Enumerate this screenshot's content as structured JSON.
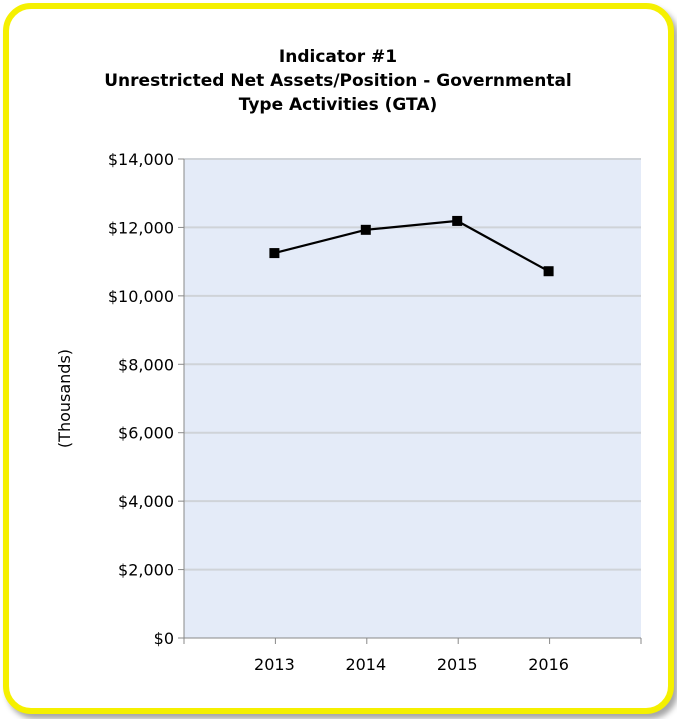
{
  "chart_data": {
    "type": "line",
    "title_lines": [
      "Indicator #1",
      "Unrestricted Net Assets/Position - Governmental",
      "Type Activities (GTA)"
    ],
    "xlabel": "",
    "ylabel": "(Thousands)",
    "categories": [
      "2013",
      "2014",
      "2015",
      "2016"
    ],
    "series": [
      {
        "values": [
          11250,
          11930,
          12190,
          10720
        ]
      }
    ],
    "ylim": [
      0,
      14000
    ],
    "yticks": [
      0,
      2000,
      4000,
      6000,
      8000,
      10000,
      12000,
      14000
    ],
    "ytick_labels": [
      "$0",
      "$2,000",
      "$4,000",
      "$6,000",
      "$8,000",
      "$10,000",
      "$12,000",
      "$14,000"
    ],
    "grid": true,
    "legend": "none",
    "colors": {
      "plot_background": "#e4ebf8",
      "line": "#000000",
      "gridline": "#cfd3d8",
      "frame_border": "#f5f000"
    }
  }
}
